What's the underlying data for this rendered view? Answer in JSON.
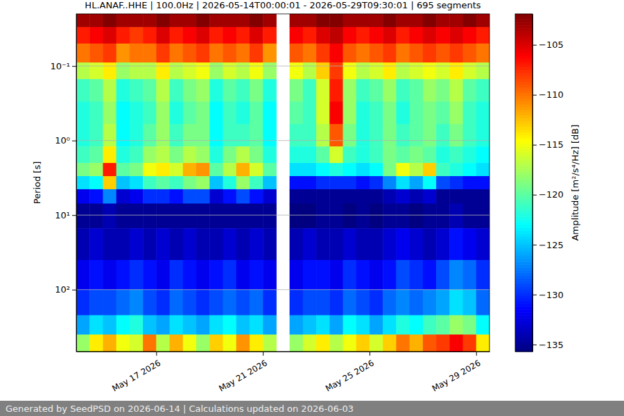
{
  "chart_data": {
    "type": "heatmap",
    "title": "HL.ANAF..HHE | 100.0Hz | 2026-05-14T00:00:01 - 2026-05-29T09:30:01 | 695 segments",
    "y_label": "Period [s]",
    "footer": "Generated by SeedPSD on 2026-06-14 | Calculations updated on 2026-06-03",
    "log": "y",
    "grid": true,
    "xlim": [
      "2026-05-14T00:00",
      "2026-05-29T12:00"
    ],
    "xticks": [
      {
        "value": "2026-05-17T00:00",
        "label": "May 17 2026"
      },
      {
        "value": "2026-05-21T00:00",
        "label": "May 21 2026"
      },
      {
        "value": "2026-05-25T00:00",
        "label": "May 25 2026"
      },
      {
        "value": "2026-05-29T00:00",
        "label": "May 29 2026"
      }
    ],
    "ylim": [
      0.02,
      676
    ],
    "yticks": [
      {
        "value": 0.1,
        "label": "10⁻¹"
      },
      {
        "value": 1,
        "label": "10⁰"
      },
      {
        "value": 10,
        "label": "10¹"
      },
      {
        "value": 100,
        "label": "10²"
      }
    ],
    "colorbar": {
      "label": "Amplitude [m²/s⁴/Hz] [dB]",
      "range": [
        -135.7,
        -101.9
      ],
      "ticks": [
        -105,
        -110,
        -115,
        -120,
        -125,
        -130,
        -135
      ]
    },
    "heatmap": {
      "x_edges": [
        "2026-05-14T00:00",
        "2026-05-14T12:00",
        "2026-05-15T00:00",
        "2026-05-15T12:00",
        "2026-05-16T00:00",
        "2026-05-16T12:00",
        "2026-05-17T00:00",
        "2026-05-17T12:00",
        "2026-05-18T00:00",
        "2026-05-18T12:00",
        "2026-05-19T00:00",
        "2026-05-19T12:00",
        "2026-05-20T00:00",
        "2026-05-20T12:00",
        "2026-05-21T00:00",
        "2026-05-21T12:00",
        "2026-05-22T00:00",
        "2026-05-22T12:00",
        "2026-05-23T00:00",
        "2026-05-23T12:00",
        "2026-05-24T00:00",
        "2026-05-24T12:00",
        "2026-05-25T00:00",
        "2026-05-25T12:00",
        "2026-05-26T00:00",
        "2026-05-26T12:00",
        "2026-05-27T00:00",
        "2026-05-27T12:00",
        "2026-05-28T00:00",
        "2026-05-28T12:00",
        "2026-05-29T00:00",
        "2026-05-29T12:00"
      ],
      "y_edges": [
        0.02,
        0.03,
        0.05,
        0.09,
        0.15,
        0.3,
        0.6,
        1.2,
        2,
        3,
        4.5,
        7,
        15,
        40,
        100,
        220,
        400,
        676
      ],
      "values": [
        [
          -103,
          -103,
          -102,
          -103,
          -103,
          -103,
          -102,
          -103,
          -103,
          -102,
          -103,
          -103,
          -103,
          -102,
          -103,
          null,
          -103,
          -103,
          -102,
          -102,
          -103,
          -103,
          -103,
          -102,
          -103,
          -103,
          -102,
          -103,
          -103,
          -102,
          -103
        ],
        [
          -107,
          -106,
          -105,
          -107,
          -108,
          -107,
          -105,
          -107,
          -106,
          -105,
          -107,
          -106,
          -107,
          -105,
          -107,
          null,
          -106,
          -107,
          -105,
          -104,
          -106,
          -107,
          -106,
          -105,
          -107,
          -106,
          -105,
          -106,
          -105,
          -106,
          -107
        ],
        [
          -110,
          -109,
          -108,
          -111,
          -110,
          -110,
          -108,
          -110,
          -109,
          -108,
          -110,
          -109,
          -110,
          -108,
          -111,
          null,
          -109,
          -110,
          -108,
          -106,
          -109,
          -110,
          -109,
          -108,
          -110,
          -109,
          -108,
          -109,
          -108,
          -109,
          -110
        ],
        [
          -117,
          -116,
          -114,
          -118,
          -117,
          -117,
          -114,
          -117,
          -116,
          -115,
          -118,
          -116,
          -117,
          -115,
          -118,
          null,
          -115,
          -117,
          -113,
          -108,
          -115,
          -117,
          -116,
          -114,
          -117,
          -116,
          -115,
          -116,
          -114,
          -116,
          -117
        ],
        [
          -121,
          -120,
          -117,
          -122,
          -121,
          -120,
          -117,
          -121,
          -119,
          -118,
          -122,
          -120,
          -121,
          -119,
          -122,
          null,
          -119,
          -121,
          -116,
          -107,
          -118,
          -121,
          -120,
          -118,
          -121,
          -120,
          -118,
          -119,
          -117,
          -120,
          -121
        ],
        [
          -122,
          -121,
          -118,
          -123,
          -122,
          -121,
          -118,
          -122,
          -120,
          -119,
          -123,
          -121,
          -122,
          -120,
          -123,
          null,
          -120,
          -121,
          -116,
          -106,
          -118,
          -122,
          -121,
          -119,
          -122,
          -120,
          -119,
          -120,
          -118,
          -121,
          -122
        ],
        [
          -122,
          -121,
          -117,
          -123,
          -122,
          -120,
          -118,
          -121,
          -119,
          -119,
          -123,
          -121,
          -121,
          -120,
          -123,
          null,
          -121,
          -121,
          -117,
          -109,
          -119,
          -122,
          -121,
          -119,
          -121,
          -120,
          -119,
          -121,
          -119,
          -121,
          -122
        ],
        [
          -121,
          -120,
          -114,
          -122,
          -121,
          -118,
          -117,
          -119,
          -117,
          -118,
          -122,
          -119,
          -117,
          -119,
          -122,
          null,
          -122,
          -122,
          -120,
          -116,
          -121,
          -122,
          -121,
          -119,
          -120,
          -119,
          -120,
          -122,
          -121,
          -122,
          -123
        ],
        [
          -119,
          -118,
          -107,
          -120,
          -119,
          -115,
          -114,
          -116,
          -112,
          -111,
          -120,
          -117,
          -112,
          -116,
          -120,
          null,
          -124,
          -124,
          -123,
          -122,
          -123,
          -124,
          -123,
          -119,
          -115,
          -117,
          -113,
          -121,
          -122,
          -123,
          -124
        ],
        [
          -124,
          -123,
          -113,
          -125,
          -124,
          -121,
          -120,
          -121,
          -119,
          -118,
          -125,
          -122,
          -118,
          -121,
          -125,
          null,
          -131,
          -131,
          -130,
          -130,
          -130,
          -131,
          -130,
          -127,
          -124,
          -126,
          -123,
          -129,
          -130,
          -131,
          -131
        ],
        [
          -132,
          -131,
          -127,
          -133,
          -132,
          -130,
          -130,
          -131,
          -129,
          -129,
          -133,
          -131,
          -129,
          -131,
          -133,
          null,
          -135,
          -135,
          -135,
          -135,
          -135,
          -135,
          -135,
          -134,
          -133,
          -134,
          -133,
          -135,
          -135,
          -135,
          -135
        ],
        [
          -135,
          -135,
          -134,
          -135,
          -135,
          -135,
          -135,
          -135,
          -135,
          -135,
          -135,
          -135,
          -135,
          -135,
          -135,
          null,
          -136,
          -136,
          -135,
          -135,
          -136,
          -135,
          -136,
          -135,
          -135,
          -136,
          -135,
          -135,
          -134,
          -135,
          -135
        ],
        [
          -134,
          -133,
          -134,
          -134,
          -133,
          -134,
          -133,
          -134,
          -133,
          -134,
          -134,
          -133,
          -134,
          -133,
          -134,
          null,
          -134,
          -133,
          -134,
          -134,
          -133,
          -134,
          -134,
          -133,
          -132,
          -133,
          -134,
          -133,
          -131,
          -132,
          -133
        ],
        [
          -132,
          -131,
          -132,
          -131,
          -130,
          -131,
          -132,
          -130,
          -131,
          -132,
          -131,
          -130,
          -132,
          -131,
          -132,
          null,
          -132,
          -131,
          -131,
          -132,
          -130,
          -131,
          -132,
          -131,
          -129,
          -130,
          -131,
          -129,
          -127,
          -128,
          -130
        ],
        [
          -130,
          -129,
          -129,
          -128,
          -127,
          -129,
          -130,
          -128,
          -129,
          -130,
          -129,
          -128,
          -129,
          -128,
          -130,
          null,
          -130,
          -129,
          -129,
          -130,
          -128,
          -129,
          -130,
          -128,
          -127,
          -128,
          -127,
          -126,
          -124,
          -125,
          -128
        ],
        [
          -126,
          -124,
          -125,
          -123,
          -122,
          -125,
          -126,
          -124,
          -125,
          -126,
          -124,
          -123,
          -125,
          -124,
          -126,
          null,
          -126,
          -125,
          -124,
          -126,
          -123,
          -124,
          -126,
          -124,
          -122,
          -123,
          -121,
          -120,
          -118,
          -119,
          -123
        ],
        [
          -118,
          -114,
          -112,
          -115,
          -116,
          -110,
          -117,
          -112,
          -115,
          -118,
          -113,
          -115,
          -111,
          -114,
          -117,
          null,
          -118,
          -116,
          -114,
          -117,
          -115,
          -113,
          -116,
          -113,
          -110,
          -112,
          -109,
          -108,
          -106,
          -108,
          -114
        ]
      ]
    }
  }
}
